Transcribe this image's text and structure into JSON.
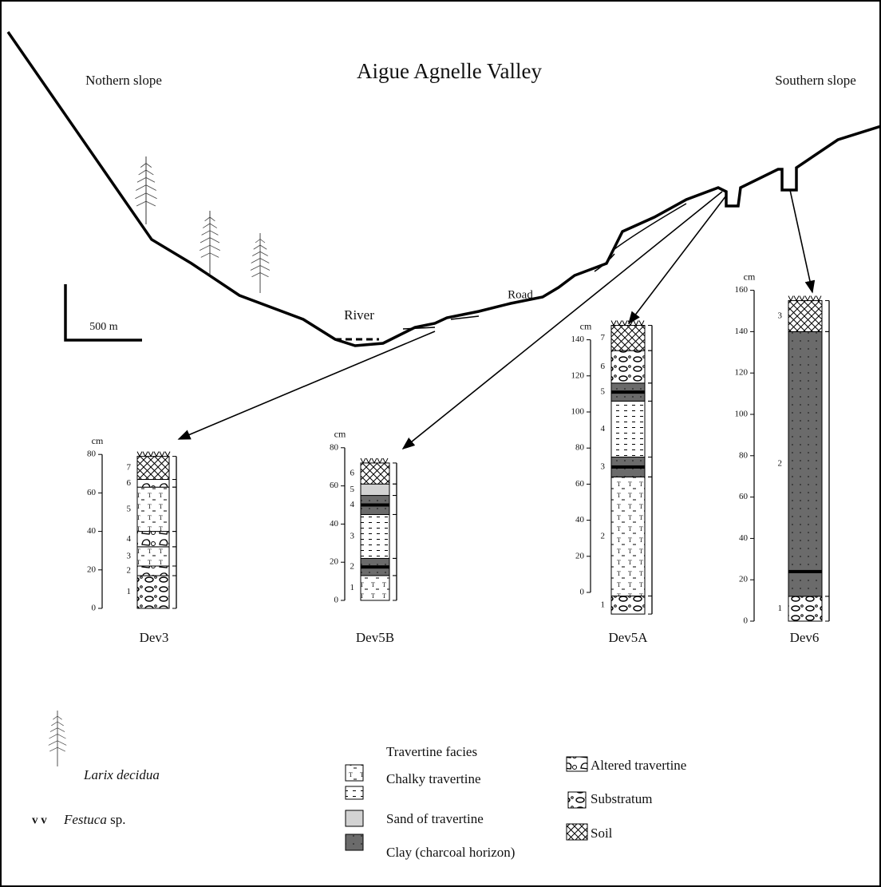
{
  "title": "Aigue Agnelle Valley",
  "slopes": {
    "north": "Nothern slope",
    "south": "Southern slope"
  },
  "scale_bar": "500 m",
  "places": {
    "river": "River",
    "road": "Road"
  },
  "columns": [
    {
      "name": "Dev3",
      "unit": "cm",
      "yticks": [
        0,
        20,
        40,
        60,
        80
      ],
      "layers": [
        {
          "label": 1,
          "range": [
            0,
            17
          ],
          "facies": "Substratum"
        },
        {
          "label": 2,
          "range": [
            17,
            22
          ],
          "facies": "Altered travertine"
        },
        {
          "label": 3,
          "range": [
            22,
            32
          ],
          "facies": "Travertine facies"
        },
        {
          "label": 4,
          "range": [
            32,
            40
          ],
          "facies": "Altered travertine"
        },
        {
          "label": 5,
          "range": [
            40,
            63
          ],
          "facies": "Travertine facies"
        },
        {
          "label": 6,
          "range": [
            63,
            67
          ],
          "facies": "Altered travertine"
        },
        {
          "label": 7,
          "range": [
            67,
            79
          ],
          "facies": "Soil"
        }
      ]
    },
    {
      "name": "Dev5B",
      "unit": "cm",
      "yticks": [
        0,
        20,
        40,
        60,
        80
      ],
      "layers": [
        {
          "label": 1,
          "range": [
            0,
            13
          ],
          "facies": "Travertine facies"
        },
        {
          "label": 2,
          "range": [
            13,
            22
          ],
          "facies": "Clay (charcoal horizon)"
        },
        {
          "label": 3,
          "range": [
            22,
            45
          ],
          "facies": "Chalky travertine"
        },
        {
          "label": 4,
          "range": [
            45,
            55
          ],
          "facies": "Clay (charcoal horizon)"
        },
        {
          "label": 5,
          "range": [
            55,
            61
          ],
          "facies": "Sand of travertine"
        },
        {
          "label": 6,
          "range": [
            61,
            72
          ],
          "facies": "Soil"
        }
      ]
    },
    {
      "name": "Dev5A",
      "unit": "cm",
      "yticks": [
        0,
        20,
        40,
        60,
        80,
        100,
        120,
        140
      ],
      "layers": [
        {
          "label": 1,
          "range": [
            -12,
            -2
          ],
          "facies": "Substratum"
        },
        {
          "label": 2,
          "range": [
            -2,
            64
          ],
          "facies": "Travertine facies"
        },
        {
          "label": 3,
          "range": [
            64,
            75
          ],
          "facies": "Clay (charcoal horizon)"
        },
        {
          "label": 4,
          "range": [
            75,
            106
          ],
          "facies": "Chalky travertine"
        },
        {
          "label": 5,
          "range": [
            106,
            116
          ],
          "facies": "Clay (charcoal horizon)"
        },
        {
          "label": 6,
          "range": [
            116,
            134
          ],
          "facies": "Substratum"
        },
        {
          "label": 7,
          "range": [
            134,
            148
          ],
          "facies": "Soil"
        }
      ]
    },
    {
      "name": "Dev6",
      "unit": "cm",
      "yticks": [
        0,
        20,
        40,
        60,
        80,
        100,
        120,
        140,
        160
      ],
      "layers": [
        {
          "label": 1,
          "range": [
            0,
            12
          ],
          "facies": "Substratum"
        },
        {
          "label": 2,
          "range": [
            12,
            140
          ],
          "facies": "Clay (charcoal horizon)"
        },
        {
          "label": 3,
          "range": [
            140,
            155
          ],
          "facies": "Soil"
        }
      ]
    }
  ],
  "legend": {
    "vegetation": [
      {
        "name": "Larix decidua"
      },
      {
        "name": "Festuca",
        "suffix": "sp."
      }
    ],
    "facies": [
      "Travertine facies",
      "Chalky travertine",
      "Sand of travertine",
      "Clay (charcoal horizon)",
      "Altered travertine",
      "Substratum",
      "Soil"
    ]
  }
}
